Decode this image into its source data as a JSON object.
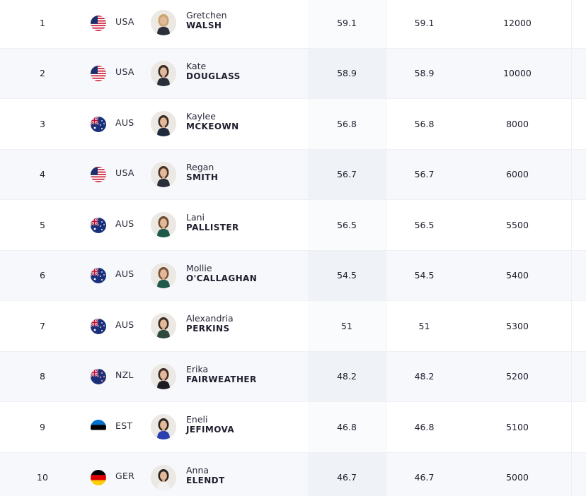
{
  "rows": [
    {
      "rank": "1",
      "country": "USA",
      "flag": "usa",
      "first": "Gretchen",
      "last": "WALSH",
      "score1": "59.1",
      "score2": "59.1",
      "points": "12000",
      "hair": "#c8a46a",
      "kit": "#2b2f3a"
    },
    {
      "rank": "2",
      "country": "USA",
      "flag": "usa",
      "first": "Kate",
      "last": "DOUGLASS",
      "score1": "58.9",
      "score2": "58.9",
      "points": "10000",
      "hair": "#3a2a22",
      "kit": "#2b2f3a"
    },
    {
      "rank": "3",
      "country": "AUS",
      "flag": "aus",
      "first": "Kaylee",
      "last": "MCKEOWN",
      "score1": "56.8",
      "score2": "56.8",
      "points": "8000",
      "hair": "#3b2b22",
      "kit": "#1f2a3a"
    },
    {
      "rank": "4",
      "country": "USA",
      "flag": "usa",
      "first": "Regan",
      "last": "SMITH",
      "score1": "56.7",
      "score2": "56.7",
      "points": "6000",
      "hair": "#4a3224",
      "kit": "#2b2f3a"
    },
    {
      "rank": "5",
      "country": "AUS",
      "flag": "aus",
      "first": "Lani",
      "last": "PALLISTER",
      "score1": "56.5",
      "score2": "56.5",
      "points": "5500",
      "hair": "#6b4a2e",
      "kit": "#1e5a4a"
    },
    {
      "rank": "6",
      "country": "AUS",
      "flag": "aus",
      "first": "Mollie",
      "last": "O'CALLAGHAN",
      "score1": "54.5",
      "score2": "54.5",
      "points": "5400",
      "hair": "#7a5232",
      "kit": "#1e5a4a"
    },
    {
      "rank": "7",
      "country": "AUS",
      "flag": "aus",
      "first": "Alexandria",
      "last": "PERKINS",
      "score1": "51",
      "score2": "51",
      "points": "5300",
      "hair": "#3a2a22",
      "kit": "#2e4a3e"
    },
    {
      "rank": "8",
      "country": "NZL",
      "flag": "nzl",
      "first": "Erika",
      "last": "FAIRWEATHER",
      "score1": "48.2",
      "score2": "48.2",
      "points": "5200",
      "hair": "#3a2a22",
      "kit": "#1c1c22"
    },
    {
      "rank": "9",
      "country": "EST",
      "flag": "est",
      "first": "Eneli",
      "last": "JEFIMOVA",
      "score1": "46.8",
      "score2": "46.8",
      "points": "5100",
      "hair": "#2a2220",
      "kit": "#2a3fb0"
    },
    {
      "rank": "10",
      "country": "GER",
      "flag": "ger",
      "first": "Anna",
      "last": "ELENDT",
      "score1": "46.7",
      "score2": "46.7",
      "points": "5000",
      "hair": "#2a2220",
      "kit": "#f2f2f2"
    }
  ]
}
